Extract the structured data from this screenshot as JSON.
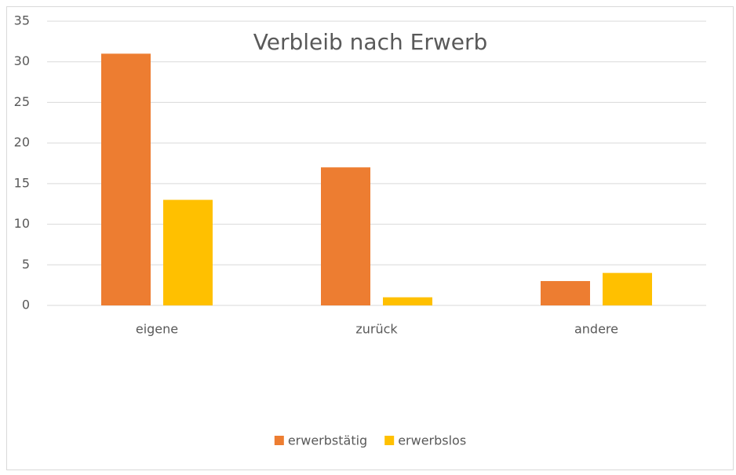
{
  "chart_data": {
    "type": "bar",
    "title": "Verbleib nach Erwerb",
    "categories": [
      "eigene",
      "zurück",
      "andere"
    ],
    "series": [
      {
        "name": "erwerbstätig",
        "color": "#ed7d31",
        "values": [
          31,
          17,
          3
        ]
      },
      {
        "name": "erwerbslos",
        "color": "#ffc000",
        "values": [
          13,
          1,
          4
        ]
      }
    ],
    "ylim": [
      0,
      35
    ],
    "yticks": [
      0,
      5,
      10,
      15,
      20,
      25,
      30,
      35
    ],
    "grid": true,
    "legend": "bottom"
  }
}
